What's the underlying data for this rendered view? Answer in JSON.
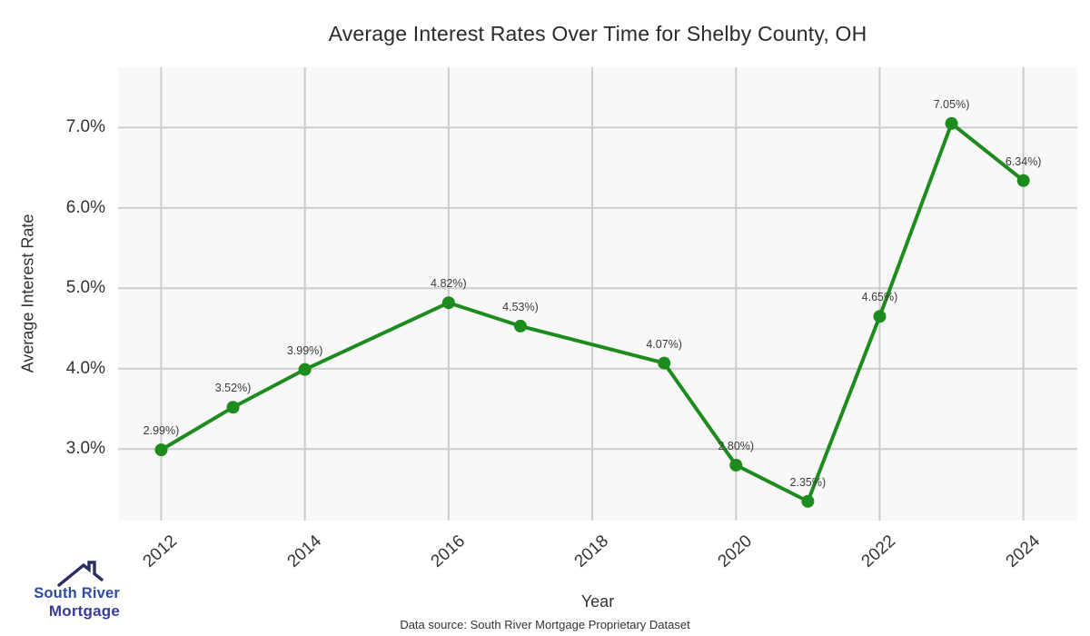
{
  "title": "Average Interest Rates Over Time for Shelby County, OH",
  "chart_data": {
    "type": "line",
    "x": [
      2012,
      2013,
      2014,
      2016,
      2017,
      2019,
      2020,
      2021,
      2022,
      2023,
      2024
    ],
    "values": [
      2.99,
      3.52,
      3.99,
      4.82,
      4.53,
      4.07,
      2.8,
      2.35,
      4.65,
      7.05,
      6.34
    ],
    "point_labels": [
      "2.99%)",
      "3.52%)",
      "3.99%)",
      "4.82%)",
      "4.53%)",
      "4.07%)",
      "2.80%)",
      "2.35%)",
      "4.65%)",
      "7.05%)",
      "6.34%)"
    ],
    "title": "Average Interest Rates Over Time for Shelby County, OH",
    "xlabel": "Year",
    "ylabel": "Average Interest Rate",
    "xticks": {
      "values": [
        2012,
        2014,
        2016,
        2018,
        2020,
        2022,
        2024
      ],
      "labels": [
        "2012",
        "2014",
        "2016",
        "2018",
        "2020",
        "2022",
        "2024"
      ]
    },
    "yticks": {
      "values": [
        3,
        4,
        5,
        6,
        7
      ],
      "labels": [
        "3.0%",
        "4.0%",
        "5.0%",
        "6.0%",
        "7.0%"
      ]
    },
    "xlim": [
      2011.4,
      2024.75
    ],
    "ylim": [
      2.11,
      7.75
    ],
    "grid": true,
    "legend": false,
    "line_color": "#1e8b1e",
    "marker_color": "#1e8b1e",
    "plot_bg": "#f8f8f8",
    "grid_color": "#cccccc"
  },
  "footer": {
    "source": "Data source: South River Mortgage Proprietary Dataset"
  },
  "logo": {
    "line1": "South River",
    "line2": "Mortgage",
    "line1_color": "#2d4ba5",
    "line2_color": "#3a3a99",
    "roof_color": "#2a2f63"
  }
}
